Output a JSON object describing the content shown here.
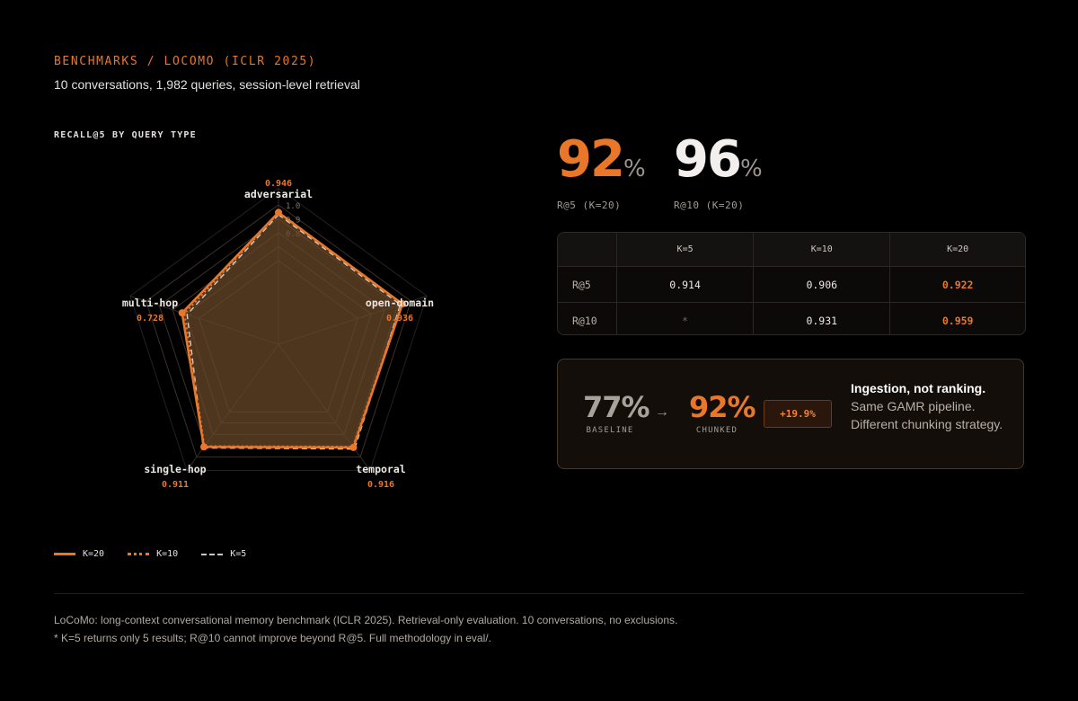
{
  "header": {
    "breadcrumb": "BENCHMARKS / LOCOMO (ICLR 2025)",
    "subtitle": "10 conversations, 1,982 queries, session-level retrieval"
  },
  "radar_section": {
    "label": "RECALL@5 BY QUERY TYPE"
  },
  "chart_data": {
    "type": "radar",
    "title": "RECALL@5 BY QUERY TYPE",
    "categories": [
      "adversarial",
      "open-domain",
      "temporal",
      "single-hop",
      "multi-hop"
    ],
    "value_labels": [
      "0.946",
      "0.936",
      "0.916",
      "0.911",
      "0.728"
    ],
    "rlim": [
      0.0,
      1.0
    ],
    "scale_labels": [
      "1.0",
      "0.9",
      "0.8"
    ],
    "series": [
      {
        "name": "K=20",
        "values": [
          0.946,
          0.936,
          0.916,
          0.911,
          0.728
        ],
        "style": "solid",
        "color": "#e8772a"
      },
      {
        "name": "K=10",
        "values": [
          0.94,
          0.93,
          0.91,
          0.905,
          0.71
        ],
        "style": "dotted",
        "color": "#e8772a"
      },
      {
        "name": "K=5",
        "values": [
          0.93,
          0.92,
          0.93,
          0.92,
          0.69
        ],
        "style": "dashed",
        "color": "#cfc7bd"
      }
    ],
    "grid": true,
    "legend": "bottom-left"
  },
  "stats": [
    {
      "value": "92",
      "unit": "%",
      "label": "R@5 (K=20)",
      "color": "#e8772a"
    },
    {
      "value": "96",
      "unit": "%",
      "label": "R@10 (K=20)",
      "color": "#f2efec"
    }
  ],
  "table": {
    "columns": [
      "K=5",
      "K=10",
      "K=20"
    ],
    "rows": [
      {
        "label": "R@5",
        "values": [
          "0.914",
          "0.906",
          "0.922"
        ]
      },
      {
        "label": "R@10",
        "values": [
          "*",
          "0.931",
          "0.959"
        ]
      }
    ]
  },
  "comparison": {
    "baseline_value": "77%",
    "baseline_label": "BASELINE",
    "arrow": "→",
    "chunked_value": "92%",
    "chunked_label": "CHUNKED",
    "delta": "+19.9%",
    "headline": "Ingestion, not ranking.",
    "line1": "Same GAMR pipeline.",
    "line2": "Different chunking strategy."
  },
  "footer": {
    "note1": "LoCoMo: long-context conversational memory benchmark (ICLR 2025). Retrieval-only evaluation. 10 conversations, no exclusions.",
    "note2": "* K=5 returns only 5 results; R@10 cannot improve beyond R@5. Full methodology in eval/."
  },
  "colors": {
    "accent": "#e8772a",
    "background": "#000000",
    "muted": "#a39c94"
  }
}
